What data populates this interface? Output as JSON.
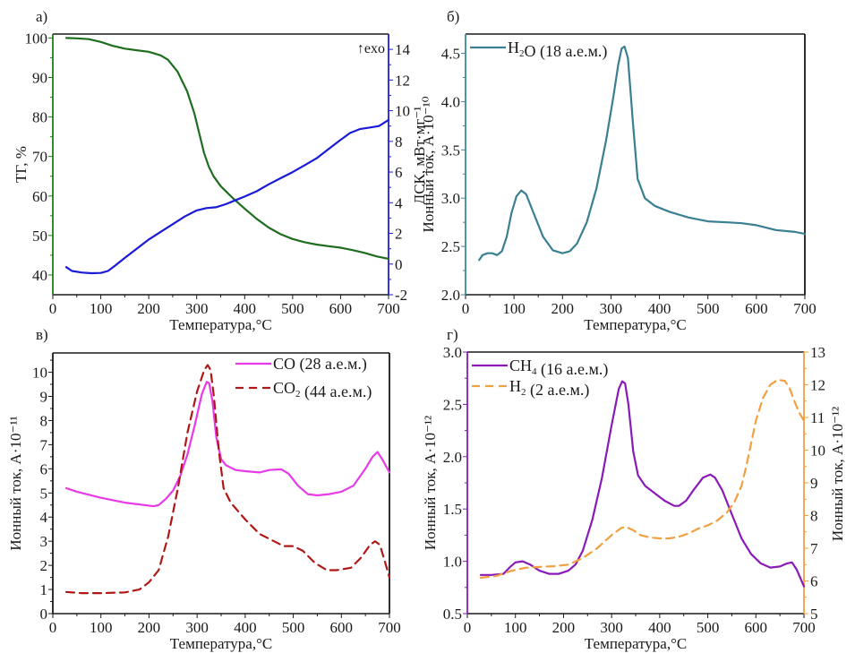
{
  "figure": {
    "xlabel_common": "Температура,°C"
  },
  "chart_data": [
    {
      "id": "a",
      "panel_label": "а)",
      "type": "line",
      "title": "",
      "xlabel": "Температура,°C",
      "ylabel": "ТГ, %",
      "y2label": "ДСК, мВт·мг⁻¹",
      "xlim": [
        0,
        700
      ],
      "ylim": [
        35,
        101
      ],
      "y2lim": [
        -2,
        15
      ],
      "xticks": [
        0,
        100,
        200,
        300,
        400,
        500,
        600,
        700
      ],
      "yticks": [
        40,
        50,
        60,
        70,
        80,
        90,
        100
      ],
      "y2ticks": [
        -2,
        0,
        2,
        4,
        6,
        8,
        10,
        12,
        14
      ],
      "annotation": "↑exo",
      "grid": false,
      "legend": "none",
      "colors": {
        "left_axis": "#1f7a1f",
        "right_axis": "#1f1fd6"
      },
      "series": [
        {
          "name": "ТГ",
          "axis": "left",
          "color": "#1f6e1f",
          "dash": "solid",
          "x": [
            28,
            50,
            75,
            100,
            125,
            150,
            175,
            200,
            225,
            240,
            260,
            280,
            295,
            305,
            315,
            325,
            335,
            350,
            375,
            400,
            425,
            450,
            475,
            500,
            525,
            550,
            575,
            600,
            625,
            650,
            675,
            700
          ],
          "y": [
            100,
            99.9,
            99.7,
            99,
            98,
            97.3,
            96.9,
            96.5,
            95.6,
            94.5,
            91.5,
            86.5,
            81,
            76,
            71,
            67.5,
            65,
            62.5,
            59.5,
            56.8,
            54.2,
            52,
            50.3,
            49.1,
            48.3,
            47.7,
            47.3,
            46.9,
            46.3,
            45.6,
            44.7,
            44.1
          ]
        },
        {
          "name": "ДСК",
          "axis": "right",
          "color": "#1a1ad9",
          "dash": "solid",
          "x": [
            28,
            40,
            60,
            80,
            100,
            115,
            130,
            150,
            175,
            200,
            225,
            250,
            275,
            300,
            320,
            340,
            360,
            380,
            400,
            425,
            450,
            475,
            500,
            525,
            550,
            575,
            600,
            620,
            640,
            660,
            680,
            700
          ],
          "y": [
            -0.2,
            -0.45,
            -0.55,
            -0.6,
            -0.58,
            -0.45,
            -0.1,
            0.4,
            1.0,
            1.6,
            2.1,
            2.6,
            3.1,
            3.5,
            3.65,
            3.7,
            3.9,
            4.15,
            4.4,
            4.75,
            5.2,
            5.6,
            6.0,
            6.45,
            6.9,
            7.5,
            8.1,
            8.55,
            8.8,
            8.9,
            9.0,
            9.4
          ]
        }
      ]
    },
    {
      "id": "b",
      "panel_label": "б)",
      "type": "line",
      "title": "",
      "xlabel": "Температура,°C",
      "ylabel": "Ионный ток, А·10⁻¹⁰",
      "xlim": [
        0,
        700
      ],
      "ylim": [
        2.0,
        4.7
      ],
      "xticks": [
        0,
        100,
        200,
        300,
        400,
        500,
        600,
        700
      ],
      "yticks": [
        2.0,
        2.5,
        3.0,
        3.5,
        4.0,
        4.5
      ],
      "grid": false,
      "legend": "top-left",
      "colors": {
        "axis": "#3a8a9a"
      },
      "series": [
        {
          "name": "H2O (18 а.е.м.)",
          "color": "#3a7f92",
          "dash": "solid",
          "x": [
            28,
            35,
            45,
            55,
            65,
            75,
            85,
            95,
            105,
            115,
            125,
            140,
            160,
            180,
            200,
            215,
            230,
            250,
            270,
            290,
            305,
            315,
            322,
            328,
            335,
            345,
            355,
            370,
            390,
            420,
            460,
            500,
            540,
            570,
            600,
            640,
            680,
            700
          ],
          "y": [
            2.36,
            2.41,
            2.43,
            2.43,
            2.41,
            2.45,
            2.6,
            2.85,
            3.02,
            3.08,
            3.04,
            2.85,
            2.6,
            2.46,
            2.43,
            2.45,
            2.53,
            2.75,
            3.1,
            3.6,
            4.05,
            4.38,
            4.55,
            4.57,
            4.45,
            3.8,
            3.2,
            3.0,
            2.92,
            2.86,
            2.8,
            2.76,
            2.75,
            2.74,
            2.72,
            2.67,
            2.65,
            2.63
          ]
        }
      ]
    },
    {
      "id": "v",
      "panel_label": "в)",
      "type": "line",
      "title": "",
      "xlabel": "Температура,°C",
      "ylabel": "Ионный ток, А·10⁻¹¹",
      "xlim": [
        0,
        700
      ],
      "ylim": [
        0,
        10.8
      ],
      "xticks": [
        0,
        100,
        200,
        300,
        400,
        500,
        600,
        700
      ],
      "yticks": [
        0,
        1,
        2,
        3,
        4,
        5,
        6,
        7,
        8,
        9,
        10
      ],
      "grid": false,
      "legend": "top-right",
      "series": [
        {
          "name": "CO (28 а.е.м.)",
          "color": "#e83ae8",
          "dash": "solid",
          "x": [
            28,
            50,
            100,
            150,
            190,
            210,
            220,
            235,
            250,
            265,
            280,
            295,
            310,
            320,
            325,
            332,
            340,
            350,
            360,
            380,
            400,
            430,
            450,
            475,
            490,
            510,
            530,
            550,
            575,
            600,
            625,
            650,
            665,
            675,
            685,
            700
          ],
          "y": [
            5.2,
            5.05,
            4.8,
            4.6,
            4.5,
            4.45,
            4.5,
            4.75,
            5.1,
            5.7,
            6.6,
            7.8,
            9.1,
            9.6,
            9.55,
            8.8,
            7.3,
            6.4,
            6.15,
            5.95,
            5.9,
            5.85,
            5.95,
            5.98,
            5.8,
            5.3,
            4.95,
            4.9,
            4.95,
            5.05,
            5.3,
            6.0,
            6.5,
            6.7,
            6.4,
            5.85
          ]
        },
        {
          "name": "CO2 (44 а.е.м.)",
          "color": "#b01818",
          "dash": "dashed",
          "x": [
            28,
            60,
            100,
            150,
            180,
            200,
            220,
            240,
            260,
            280,
            300,
            315,
            322,
            328,
            335,
            345,
            355,
            370,
            400,
            430,
            460,
            480,
            500,
            520,
            545,
            570,
            590,
            620,
            640,
            660,
            670,
            680,
            690,
            700
          ],
          "y": [
            0.9,
            0.85,
            0.85,
            0.88,
            1.0,
            1.3,
            1.8,
            3.2,
            5.2,
            7.5,
            9.2,
            10.1,
            10.3,
            10.1,
            9.0,
            6.8,
            5.2,
            4.6,
            3.9,
            3.3,
            3.0,
            2.8,
            2.8,
            2.6,
            2.1,
            1.8,
            1.8,
            1.9,
            2.3,
            2.85,
            3.0,
            2.85,
            2.2,
            1.5
          ]
        }
      ]
    },
    {
      "id": "g",
      "panel_label": "г)",
      "type": "line",
      "title": "",
      "xlabel": "Температура,°C",
      "ylabel": "Ионный ток, А·10⁻¹²",
      "y2label": "Ионный ток, А·10⁻¹²",
      "xlim": [
        0,
        700
      ],
      "ylim": [
        0.5,
        3.0
      ],
      "y2lim": [
        5,
        13
      ],
      "xticks": [
        0,
        100,
        200,
        300,
        400,
        500,
        600,
        700
      ],
      "yticks": [
        0.5,
        1.0,
        1.5,
        2.0,
        2.5,
        3.0
      ],
      "y2ticks": [
        5,
        6,
        7,
        8,
        9,
        10,
        11,
        12,
        13
      ],
      "grid": false,
      "legend": "top-left",
      "colors": {
        "left_axis": "#8a1ab8",
        "right_axis": "#f0a040"
      },
      "series": [
        {
          "name": "CH4 (16 а.е.м.)",
          "axis": "left",
          "color": "#8a1ab8",
          "dash": "solid",
          "x": [
            28,
            50,
            75,
            90,
            100,
            115,
            130,
            150,
            170,
            190,
            210,
            225,
            240,
            260,
            280,
            300,
            315,
            322,
            328,
            335,
            345,
            355,
            370,
            390,
            410,
            430,
            440,
            455,
            470,
            490,
            505,
            515,
            530,
            550,
            570,
            590,
            610,
            630,
            650,
            665,
            675,
            685,
            700
          ],
          "y": [
            0.87,
            0.87,
            0.88,
            0.95,
            0.99,
            1.0,
            0.97,
            0.91,
            0.88,
            0.88,
            0.91,
            0.97,
            1.1,
            1.4,
            1.8,
            2.3,
            2.65,
            2.72,
            2.7,
            2.5,
            2.05,
            1.82,
            1.72,
            1.65,
            1.58,
            1.53,
            1.53,
            1.58,
            1.68,
            1.8,
            1.83,
            1.8,
            1.68,
            1.45,
            1.22,
            1.07,
            0.98,
            0.94,
            0.95,
            0.98,
            0.99,
            0.92,
            0.76
          ]
        },
        {
          "name": "H2 (2 а.е.м.)",
          "axis": "right",
          "color": "#f0a040",
          "dash": "dashed",
          "x": [
            28,
            60,
            90,
            120,
            150,
            180,
            210,
            240,
            270,
            300,
            320,
            330,
            345,
            360,
            380,
            400,
            420,
            440,
            460,
            480,
            500,
            520,
            540,
            555,
            570,
            580,
            590,
            600,
            615,
            630,
            645,
            660,
            670,
            680,
            690,
            700
          ],
          "y": [
            6.1,
            6.15,
            6.3,
            6.4,
            6.43,
            6.45,
            6.5,
            6.7,
            7.0,
            7.4,
            7.62,
            7.65,
            7.55,
            7.4,
            7.33,
            7.3,
            7.3,
            7.35,
            7.45,
            7.6,
            7.7,
            7.85,
            8.1,
            8.4,
            8.9,
            9.5,
            10.2,
            10.9,
            11.6,
            12.0,
            12.15,
            12.12,
            11.9,
            11.5,
            11.15,
            10.9
          ]
        }
      ]
    }
  ]
}
